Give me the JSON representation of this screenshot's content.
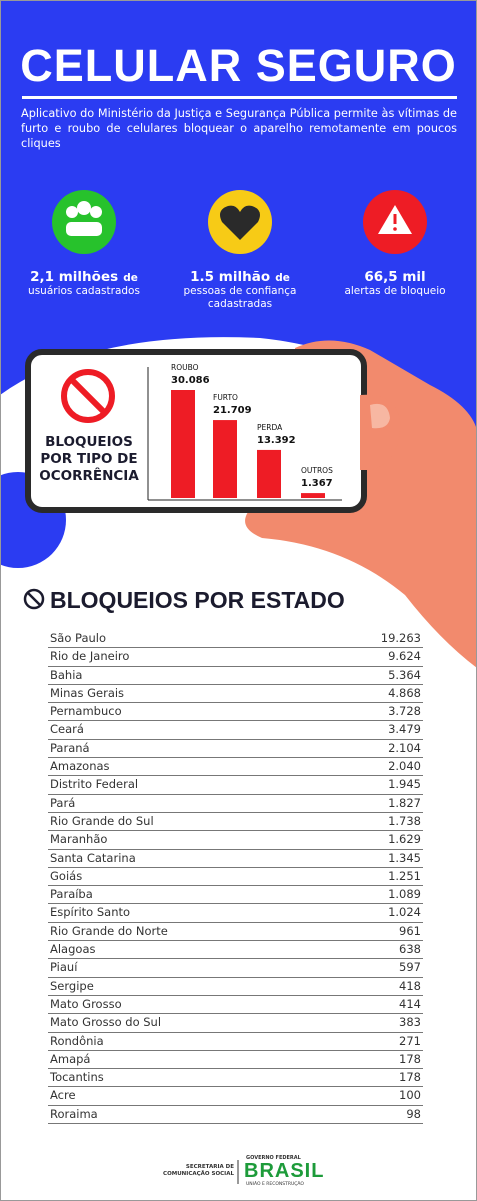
{
  "header": {
    "title": "CELULAR SEGURO",
    "description": "Aplicativo do Ministério da Justiça e Segurança Pública permite às vítimas de furto e roubo de celulares bloquear o aparelho remotamente em poucos cliques"
  },
  "stats": [
    {
      "value": "2,1 milhões",
      "connector": "de",
      "label": "usuários cadastrados"
    },
    {
      "value": "1.5 milhão",
      "connector": "de",
      "label": "pessoas de confiança cadastradas"
    },
    {
      "value": "66,5 mil",
      "label": "alertas de bloqueio"
    }
  ],
  "chart_data": {
    "type": "bar",
    "title": "BLOQUEIOS POR TIPO DE OCORRÊNCIA",
    "categories": [
      "ROUBO",
      "FURTO",
      "PERDA",
      "OUTROS"
    ],
    "values": [
      30086,
      21709,
      13392,
      1367
    ],
    "value_labels": [
      "30.086",
      "21.709",
      "13.392",
      "1.367"
    ],
    "color": "#ee1c25"
  },
  "table": {
    "title": "BLOQUEIOS POR ESTADO",
    "rows": [
      [
        "São Paulo",
        "19.263"
      ],
      [
        "Rio de Janeiro",
        "9.624"
      ],
      [
        "Bahia",
        "5.364"
      ],
      [
        "Minas Gerais",
        "4.868"
      ],
      [
        "Pernambuco",
        "3.728"
      ],
      [
        "Ceará",
        "3.479"
      ],
      [
        "Paraná",
        "2.104"
      ],
      [
        "Amazonas",
        "2.040"
      ],
      [
        "Distrito Federal",
        "1.945"
      ],
      [
        "Pará",
        "1.827"
      ],
      [
        "Rio Grande do Sul",
        "1.738"
      ],
      [
        "Maranhão",
        "1.629"
      ],
      [
        "Santa Catarina",
        "1.345"
      ],
      [
        "Goiás",
        "1.251"
      ],
      [
        "Paraíba",
        "1.089"
      ],
      [
        "Espírito Santo",
        "1.024"
      ],
      [
        "Rio Grande do Norte",
        "961"
      ],
      [
        "Alagoas",
        "638"
      ],
      [
        "Piauí",
        "597"
      ],
      [
        "Sergipe",
        "418"
      ],
      [
        "Mato Grosso",
        "414"
      ],
      [
        "Mato Grosso do Sul",
        "383"
      ],
      [
        "Rondônia",
        "271"
      ],
      [
        "Amapá",
        "178"
      ],
      [
        "Tocantins",
        "178"
      ],
      [
        "Acre",
        "100"
      ],
      [
        "Roraima",
        "98"
      ]
    ]
  },
  "footer": {
    "secretaria": "SECRETARIA DE COMUNICAÇÃO SOCIAL",
    "government": "GOVERNO FEDERAL",
    "brand": "BRASIL",
    "slogan": "UNIÃO E RECONSTRUÇÃO"
  }
}
